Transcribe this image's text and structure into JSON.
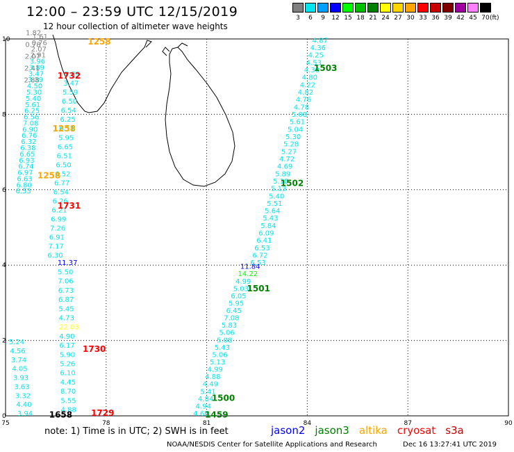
{
  "title": "12:00 – 23:59 UTC 12/15/2019",
  "subtitle": "12 hour collection of altimeter wave heights",
  "color_scale": {
    "labels": [
      "3",
      "6",
      "9",
      "12",
      "15",
      "18",
      "21",
      "24",
      "27",
      "30",
      "33",
      "36",
      "39",
      "42",
      "45",
      "70"
    ],
    "colors": [
      "#808080",
      "#00e5ee",
      "#00a0ff",
      "#0000ff",
      "#00ff00",
      "#00c000",
      "#008000",
      "#ffff00",
      "#ffd700",
      "#ffa500",
      "#ff0000",
      "#c80000",
      "#800000",
      "#a000a0",
      "#ff80ff",
      "#000000"
    ],
    "unit": "(ft)"
  },
  "x_axis": {
    "ticks": [
      "75",
      "78",
      "81",
      "84",
      "87",
      "90"
    ],
    "range": [
      75,
      90
    ]
  },
  "y_axis": {
    "ticks": [
      "0",
      "2",
      "4",
      "6",
      "8",
      "10"
    ],
    "range": [
      0,
      10
    ]
  },
  "satellites": [
    {
      "name": "jason2",
      "color": "#0000ff"
    },
    {
      "name": "jason3",
      "color": "#008000"
    },
    {
      "name": "altika",
      "color": "#ffa500"
    },
    {
      "name": "cryosat",
      "color": "#ff0000"
    },
    {
      "name": "s3a",
      "color": "#c80000"
    }
  ],
  "note": "note: 1) Time is in UTC; 2) SWH is in feet",
  "credit": "NOAA/NESDIS Center for Satellite Applications and Research",
  "timestamp": "Dec 16 13:27:41 UTC 2019",
  "pass_labels": [
    {
      "text": "1258",
      "lon": 77.45,
      "lat": 9.85,
      "color": "#ffa500"
    },
    {
      "text": "1732",
      "lon": 76.55,
      "lat": 8.95,
      "color": "#ff0000"
    },
    {
      "text": "1258",
      "lon": 76.4,
      "lat": 7.55,
      "color": "#ffa500"
    },
    {
      "text": "1258",
      "lon": 75.95,
      "lat": 6.3,
      "color": "#ffa500"
    },
    {
      "text": "1731",
      "lon": 76.55,
      "lat": 5.5,
      "color": "#ff0000"
    },
    {
      "text": "1730",
      "lon": 77.3,
      "lat": 1.7,
      "color": "#ff0000"
    },
    {
      "text": "1729",
      "lon": 77.55,
      "lat": 0.0,
      "color": "#ff0000"
    },
    {
      "text": "1658",
      "lon": 76.3,
      "lat": -0.05,
      "color": "#000000"
    },
    {
      "text": "1503",
      "lon": 84.2,
      "lat": 9.15,
      "color": "#008000"
    },
    {
      "text": "1502",
      "lon": 83.2,
      "lat": 6.1,
      "color": "#008000"
    },
    {
      "text": "1501",
      "lon": 82.2,
      "lat": 3.3,
      "color": "#008000"
    },
    {
      "text": "1500",
      "lon": 81.15,
      "lat": 0.4,
      "color": "#008000"
    },
    {
      "text": "1459",
      "lon": 80.95,
      "lat": -0.05,
      "color": "#008000"
    }
  ],
  "tracks": [
    {
      "name": "track-1258-1732",
      "lon0": 75.8,
      "lat0": 10.0,
      "lon1": 75.3,
      "lat1": 5.9,
      "values": [
        "1.61",
        "0.76",
        "2.07",
        "2.91",
        "3.96",
        "3.89",
        "3.47",
        "3.39",
        "4.50",
        "5.30",
        "5.40",
        "5.61",
        "6.25",
        "6.56",
        "7.08",
        "6.90",
        "6.76",
        "6.32",
        "6.38",
        "6.65",
        "6.93",
        "6.74",
        "6.97",
        "6.63",
        "6.80",
        "6.53"
      ],
      "colors": [
        "#808080",
        "#808080",
        "#808080",
        "#808080",
        "#00e5ee"
      ]
    },
    {
      "name": "track-1258-1731-b",
      "lon0": 75.6,
      "lat0": 10.1,
      "lon1": 75.55,
      "lat1": 8.85,
      "values": [
        "1.82",
        "0.78",
        "2.07",
        "2.41",
        "2.88"
      ],
      "colors": [
        "#808080"
      ]
    },
    {
      "name": "track-1731",
      "lon0": 76.75,
      "lat0": 9.0,
      "lon1": 76.25,
      "lat1": 4.2,
      "values": [
        "3.89",
        "3.47",
        "5.59",
        "6.50",
        "6.54",
        "6.25",
        "6.11",
        "5.95",
        "6.65",
        "6.51",
        "6.50",
        "6.52",
        "6.77",
        "6.54",
        "6.26",
        "6.21",
        "6.99",
        "7.26",
        "6.91",
        "7.17",
        "6.30"
      ],
      "colors": [
        "#00e5ee"
      ]
    },
    {
      "name": "track-1730",
      "lon0": 76.55,
      "lat0": 4.0,
      "lon1": 76.65,
      "lat1": 0.1,
      "values": [
        "11.37",
        "5.50",
        "7.06",
        "6.73",
        "6.87",
        "5.45",
        "4.73",
        "22.03",
        "4.90",
        "6.17",
        "5.90",
        "5.26",
        "6.10",
        "4.45",
        "8.70",
        "5.55",
        "4.88"
      ],
      "colors": [
        "#00e5ee"
      ]
    },
    {
      "name": "track-1729",
      "lon0": 75.1,
      "lat0": 1.9,
      "lon1": 75.35,
      "lat1": 0.0,
      "values": [
        "5.24",
        "4.56",
        "3.74",
        "4.05",
        "3.93",
        "3.63",
        "3.32",
        "4.40",
        "3.94"
      ],
      "colors": [
        "#00e5ee"
      ]
    },
    {
      "name": "track-1503",
      "lon0": 84.15,
      "lat0": 9.9,
      "lon1": 82.3,
      "lat1": 4.0,
      "values": [
        "4.87",
        "4.36",
        "4.25",
        "4.53",
        "4.30",
        "4.80",
        "4.22",
        "4.82",
        "4.76",
        "4.78",
        "5.08",
        "5.61",
        "5.04",
        "5.30",
        "5.28",
        "5.27",
        "4.72",
        "4.69",
        "5.89",
        "5.18",
        "5.13",
        "5.40",
        "5.51",
        "5.64",
        "5.43",
        "5.84",
        "6.09",
        "6.41",
        "6.53",
        "6.72",
        "6.53"
      ],
      "colors": [
        "#00e5ee"
      ]
    },
    {
      "name": "track-1501",
      "lon0": 82.0,
      "lat0": 3.9,
      "lon1": 80.6,
      "lat1": 0.0,
      "values": [
        "11.84",
        "14.22",
        "4.99",
        "5.03",
        "6.05",
        "5.95",
        "6.45",
        "7.08",
        "5.83",
        "5.06",
        "5.08",
        "5.43",
        "5.06",
        "5.13",
        "4.99",
        "4.88",
        "4.49",
        "5.41",
        "4.84",
        "4.94",
        "4.68"
      ],
      "colors": [
        "#00e5ee"
      ]
    }
  ]
}
